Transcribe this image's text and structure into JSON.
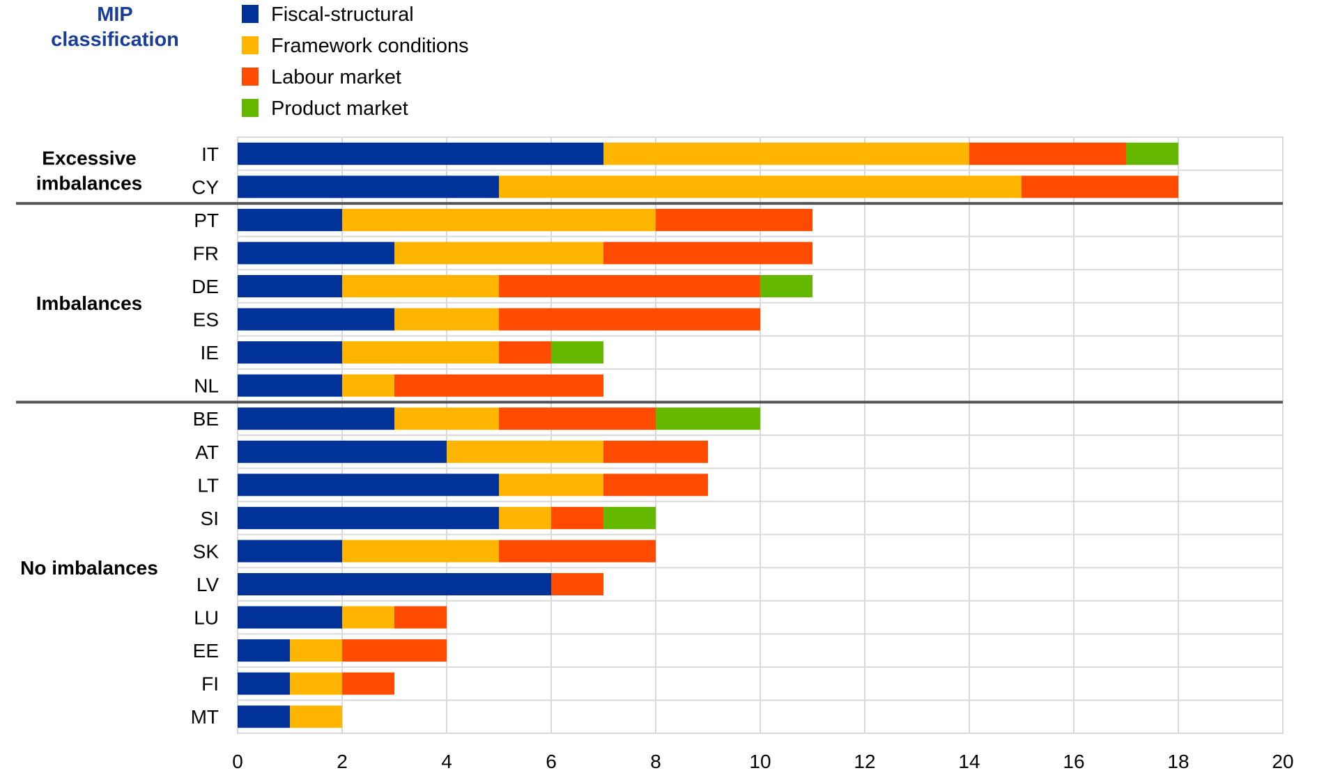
{
  "chart_data": {
    "type": "bar",
    "orientation": "horizontal",
    "stacked": true,
    "title": "MIP classification",
    "title_lines": [
      "MIP",
      "classification"
    ],
    "xlabel": "",
    "ylabel": "",
    "xlim": [
      0,
      20
    ],
    "x_ticks": [
      0,
      2,
      4,
      6,
      8,
      10,
      12,
      14,
      16,
      18,
      20
    ],
    "grid": true,
    "legend_position": "top",
    "categories": [
      "IT",
      "CY",
      "PT",
      "FR",
      "DE",
      "ES",
      "IE",
      "NL",
      "BE",
      "AT",
      "LT",
      "SI",
      "SK",
      "LV",
      "LU",
      "EE",
      "FI",
      "MT"
    ],
    "groups": [
      {
        "label": "Excessive imbalances",
        "label_lines": [
          "Excessive",
          "imbalances"
        ],
        "categories": [
          "IT",
          "CY"
        ]
      },
      {
        "label": "Imbalances",
        "label_lines": [
          "Imbalances"
        ],
        "categories": [
          "PT",
          "FR",
          "DE",
          "ES",
          "IE",
          "NL"
        ]
      },
      {
        "label": "No imbalances",
        "label_lines": [
          "No imbalances"
        ],
        "categories": [
          "BE",
          "AT",
          "LT",
          "SI",
          "SK",
          "LV",
          "LU",
          "EE",
          "FI",
          "MT"
        ]
      }
    ],
    "series": [
      {
        "name": "Fiscal-structural",
        "color": "#003299",
        "values": [
          7,
          5,
          2,
          3,
          2,
          3,
          2,
          2,
          3,
          4,
          5,
          5,
          2,
          6,
          2,
          1,
          1,
          1
        ]
      },
      {
        "name": "Framework conditions",
        "color": "#FFB400",
        "values": [
          7,
          10,
          6,
          4,
          3,
          2,
          3,
          1,
          2,
          3,
          2,
          1,
          3,
          0,
          1,
          1,
          1,
          1
        ]
      },
      {
        "name": "Labour market",
        "color": "#FF4B00",
        "values": [
          3,
          3,
          3,
          4,
          5,
          5,
          1,
          4,
          3,
          2,
          2,
          1,
          3,
          1,
          1,
          2,
          1,
          0
        ]
      },
      {
        "name": "Product market",
        "color": "#65B800",
        "values": [
          1,
          0,
          0,
          0,
          1,
          0,
          1,
          0,
          2,
          0,
          0,
          1,
          0,
          0,
          0,
          0,
          0,
          0
        ]
      }
    ]
  }
}
